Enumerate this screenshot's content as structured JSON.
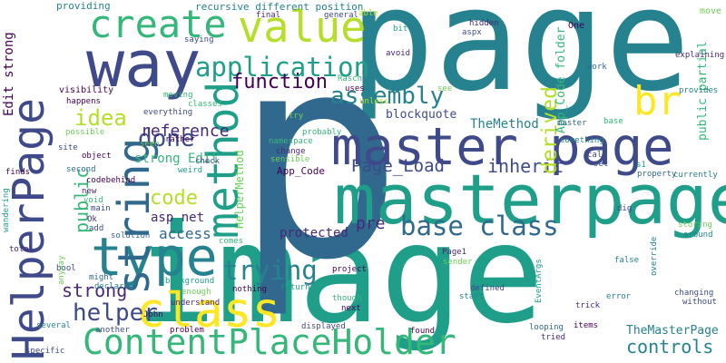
{
  "palette": {
    "deep_purple": "#440154",
    "purple": "#482878",
    "indigo": "#3e4a89",
    "blue": "#31688e",
    "teal": "#26828e",
    "sea_green": "#1f9e89",
    "green": "#35b779",
    "lime": "#6ece58",
    "yellow_green": "#b5de2b",
    "yellow": "#fde725"
  },
  "words": [
    {
      "text": "page",
      "color": "#26828e"
    },
    {
      "text": "image",
      "color": "#1f9e89"
    },
    {
      "text": "p",
      "color": "#31688e"
    },
    {
      "text": "masterpage",
      "color": "#1f9e89"
    },
    {
      "text": "master page",
      "color": "#3e4a89"
    },
    {
      "text": "HelperPage",
      "color": "#3e4a89"
    },
    {
      "text": "way",
      "color": "#3e4a89"
    },
    {
      "text": "ContentPlaceHolder",
      "color": "#35b779"
    },
    {
      "text": "class",
      "color": "#fde725"
    },
    {
      "text": "type",
      "color": "#26828e"
    },
    {
      "text": "string",
      "color": "#31688e"
    },
    {
      "text": "method",
      "color": "#1f9e89"
    },
    {
      "text": "create",
      "color": "#35b779"
    },
    {
      "text": "value",
      "color": "#b5de2b"
    },
    {
      "text": "br",
      "color": "#fde725"
    },
    {
      "text": "application",
      "color": "#1f9e89"
    },
    {
      "text": "base class",
      "color": "#31688e"
    },
    {
      "text": "assembly",
      "color": "#26828e"
    },
    {
      "text": "trying",
      "color": "#26828e"
    },
    {
      "text": "Page_Load",
      "color": "#3e4a89"
    },
    {
      "text": "inherit",
      "color": "#3e4a89"
    },
    {
      "text": "derived",
      "color": "#b5de2b"
    },
    {
      "text": "function",
      "color": "#440154"
    },
    {
      "text": "helper",
      "color": "#3e4a89"
    },
    {
      "text": "done",
      "color": "#3e4a89"
    },
    {
      "text": "code",
      "color": "#b5de2b"
    },
    {
      "text": "idea",
      "color": "#b5de2b"
    },
    {
      "text": "public",
      "color": "#35b779"
    },
    {
      "text": "strong",
      "color": "#482878"
    },
    {
      "text": "controls",
      "color": "#26828e"
    },
    {
      "text": "reference",
      "color": "#482878"
    },
    {
      "text": "protected",
      "color": "#482878"
    },
    {
      "text": "pre",
      "color": "#482878"
    },
    {
      "text": "access",
      "color": "#31688e"
    },
    {
      "text": "asp net",
      "color": "#482878"
    },
    {
      "text": "strong Edit",
      "color": "#35b779"
    },
    {
      "text": "Edit strong",
      "color": "#440154"
    },
    {
      "text": "TheMasterPage",
      "color": "#26828e"
    },
    {
      "text": "TheMethod",
      "color": "#26828e"
    },
    {
      "text": "blockquote",
      "color": "#3e4a89"
    },
    {
      "text": "App_Code folder",
      "color": "#35b779"
    },
    {
      "text": "public partial",
      "color": "#35b779"
    },
    {
      "text": "HelperMethod",
      "color": "#6ece58"
    },
    {
      "text": "App_Code",
      "color": "#440154"
    },
    {
      "text": "recursive different position",
      "color": "#26828e"
    },
    {
      "text": "providing",
      "color": "#26828e"
    },
    {
      "text": "saying",
      "color": "#3e4a89"
    },
    {
      "text": "final",
      "color": "#482878"
    },
    {
      "text": "general",
      "color": "#3e4a89"
    },
    {
      "text": "hidden",
      "color": "#482878"
    },
    {
      "text": "aspx",
      "color": "#3e4a89"
    },
    {
      "text": "One",
      "color": "#440154"
    },
    {
      "text": "move",
      "color": "#6ece58"
    },
    {
      "text": "explaining",
      "color": "#482878"
    },
    {
      "text": "provides",
      "color": "#26828e"
    },
    {
      "text": "currently",
      "color": "#26828e"
    },
    {
      "text": "work",
      "color": "#31688e"
    },
    {
      "text": "master",
      "color": "#31688e"
    },
    {
      "text": "base",
      "color": "#35b779"
    },
    {
      "text": "s1",
      "color": "#1f9e89"
    },
    {
      "text": "property",
      "color": "#31688e"
    },
    {
      "text": "visibility",
      "color": "#440154"
    },
    {
      "text": "happens",
      "color": "#440154"
    },
    {
      "text": "possible",
      "color": "#6ece58"
    },
    {
      "text": "site",
      "color": "#3e4a89"
    },
    {
      "text": "object",
      "color": "#440154"
    },
    {
      "text": "second",
      "color": "#31688e"
    },
    {
      "text": "codebehind",
      "color": "#440154"
    },
    {
      "text": "new",
      "color": "#482878"
    },
    {
      "text": "void",
      "color": "#35b779"
    },
    {
      "text": "main",
      "color": "#3e4a89"
    },
    {
      "text": "add",
      "color": "#3e4a89"
    },
    {
      "text": "Ok",
      "color": "#482878"
    },
    {
      "text": "finds",
      "color": "#440154"
    },
    {
      "text": "wandering",
      "color": "#1f9e89"
    },
    {
      "text": "total",
      "color": "#482878"
    },
    {
      "text": "bool",
      "color": "#3e4a89"
    },
    {
      "text": "anyway",
      "color": "#6ece58"
    },
    {
      "text": "might",
      "color": "#31688e"
    },
    {
      "text": "declared",
      "color": "#26828e"
    },
    {
      "text": "several",
      "color": "#26828e"
    },
    {
      "text": "specific",
      "color": "#3e4a89"
    },
    {
      "text": "another",
      "color": "#3e4a89"
    },
    {
      "text": "problem",
      "color": "#440154"
    },
    {
      "text": "John",
      "color": "#440154"
    },
    {
      "text": "understand",
      "color": "#482878"
    },
    {
      "text": "background",
      "color": "#1f9e89"
    },
    {
      "text": "enough",
      "color": "#6ece58"
    },
    {
      "text": "nothing",
      "color": "#440154"
    },
    {
      "text": "comes",
      "color": "#35b779"
    },
    {
      "text": "displayed",
      "color": "#3e4a89"
    },
    {
      "text": "next",
      "color": "#440154"
    },
    {
      "text": "found",
      "color": "#440154"
    },
    {
      "text": "though",
      "color": "#35b779"
    },
    {
      "text": "project",
      "color": "#440154"
    },
    {
      "text": "return",
      "color": "#1f9e89"
    },
    {
      "text": "defined",
      "color": "#3e4a89"
    },
    {
      "text": "start",
      "color": "#26828e"
    },
    {
      "text": "sender",
      "color": "#6ece58"
    },
    {
      "text": "EventArgs",
      "color": "#1f9e89"
    },
    {
      "text": "Page1",
      "color": "#482878"
    },
    {
      "text": "tried",
      "color": "#482878"
    },
    {
      "text": "looping",
      "color": "#31688e"
    },
    {
      "text": "items",
      "color": "#440154"
    },
    {
      "text": "trick",
      "color": "#482878"
    },
    {
      "text": "error",
      "color": "#26828e"
    },
    {
      "text": "changing",
      "color": "#3e4a89"
    },
    {
      "text": "without",
      "color": "#3e4a89"
    },
    {
      "text": "override",
      "color": "#26828e"
    },
    {
      "text": "around",
      "color": "#26828e"
    },
    {
      "text": "storing",
      "color": "#6ece58"
    },
    {
      "text": "false",
      "color": "#26828e"
    },
    {
      "text": "dig",
      "color": "#3e4a89"
    },
    {
      "text": "set",
      "color": "#3e4a89"
    },
    {
      "text": "call",
      "color": "#3e4a89"
    },
    {
      "text": "something",
      "color": "#26828e"
    },
    {
      "text": "change",
      "color": "#482878"
    },
    {
      "text": "sensible",
      "color": "#6ece58"
    },
    {
      "text": "namespace",
      "color": "#35b779"
    },
    {
      "text": "probably",
      "color": "#35b779"
    },
    {
      "text": "try",
      "color": "#6ece58"
    },
    {
      "text": "seen",
      "color": "#6ece58"
    },
    {
      "text": "rather",
      "color": "#440154"
    },
    {
      "text": "classes",
      "color": "#35b779"
    },
    {
      "text": "everything",
      "color": "#3e4a89"
    },
    {
      "text": "moving",
      "color": "#35b779"
    },
    {
      "text": "check",
      "color": "#3e4a89"
    },
    {
      "text": "weird",
      "color": "#1f9e89"
    },
    {
      "text": "solution",
      "color": "#31688e"
    },
    {
      "text": "uses",
      "color": "#440154"
    },
    {
      "text": "Rasch",
      "color": "#35b779"
    },
    {
      "text": "unless",
      "color": "#b5de2b"
    },
    {
      "text": "see",
      "color": "#6ece58"
    },
    {
      "text": "avoid",
      "color": "#482878"
    },
    {
      "text": "bit",
      "color": "#1f9e89"
    },
    {
      "text": "able",
      "color": "#b5de2b"
    }
  ]
}
